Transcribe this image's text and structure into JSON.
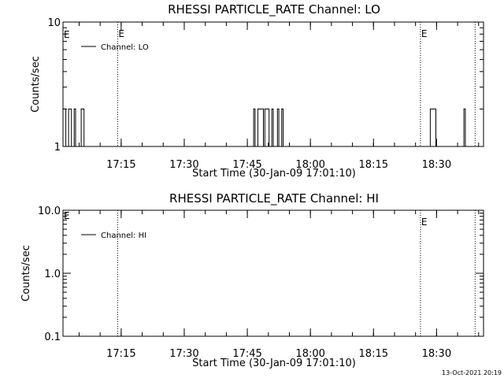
{
  "footer_timestamp": "13-Oct-2021 20:19",
  "chart_data": [
    {
      "type": "line",
      "title": "RHESSI PARTICLE_RATE Channel: LO",
      "xlabel": "Start Time (30-Jan-09 17:01:10)",
      "ylabel": "Counts/sec",
      "yscale": "log",
      "ylim": [
        1,
        10
      ],
      "yticks": [
        1,
        10
      ],
      "ytick_labels": [
        "1",
        "10"
      ],
      "xlim": [
        "17:01:10",
        "18:41:10"
      ],
      "xticks": [
        "17:15",
        "17:30",
        "17:45",
        "18:00",
        "18:15",
        "18:30"
      ],
      "legend": {
        "label": "Channel: LO",
        "position": "top-left"
      },
      "event_lines": [
        {
          "time": "17:14:10",
          "label": "E"
        },
        {
          "time": "18:26:10",
          "label": "E"
        },
        {
          "time": "18:39:10",
          "label": ""
        }
      ],
      "edge_label": "E",
      "series": [
        {
          "name": "Channel: LO",
          "x": [
            "17:01:10",
            "17:01:30",
            "17:01:50",
            "17:02:10",
            "17:02:30",
            "17:03:10",
            "17:03:30",
            "17:03:50",
            "17:04:10",
            "17:05:10",
            "17:05:30",
            "17:05:50",
            "17:06:10",
            "17:46:10",
            "17:46:30",
            "17:46:50",
            "17:47:10",
            "17:47:30",
            "17:47:50",
            "17:48:10",
            "17:48:50",
            "17:49:10",
            "17:49:30",
            "17:49:50",
            "17:50:10",
            "17:50:30",
            "17:50:50",
            "17:51:10",
            "17:51:30",
            "17:51:50",
            "17:52:10",
            "17:52:30",
            "17:52:50",
            "17:53:10",
            "17:53:30",
            "18:28:10",
            "18:28:30",
            "18:28:50",
            "18:29:10",
            "18:29:30",
            "18:29:50",
            "18:36:10",
            "18:36:30",
            "18:36:50",
            "18:37:10"
          ],
          "y": [
            2,
            2,
            1,
            1,
            2,
            1,
            1,
            2,
            1,
            1,
            2,
            2,
            1,
            1,
            2,
            1,
            1,
            2,
            2,
            2,
            1,
            2,
            2,
            2,
            1,
            1,
            2,
            1,
            1,
            1,
            2,
            1,
            1,
            2,
            1,
            1,
            2,
            2,
            2,
            2,
            1,
            1,
            2,
            1,
            1
          ]
        }
      ]
    },
    {
      "type": "line",
      "title": "RHESSI PARTICLE_RATE Channel: HI",
      "xlabel": "Start Time (30-Jan-09 17:01:10)",
      "ylabel": "Counts/sec",
      "yscale": "log",
      "ylim": [
        0.1,
        10
      ],
      "yticks": [
        0.1,
        1,
        10
      ],
      "ytick_labels": [
        "0.1",
        "1.0",
        "10.0"
      ],
      "xlim": [
        "17:01:10",
        "18:41:10"
      ],
      "xticks": [
        "17:15",
        "17:30",
        "17:45",
        "18:00",
        "18:15",
        "18:30"
      ],
      "legend": {
        "label": "Channel: HI",
        "position": "top-left"
      },
      "event_lines": [
        {
          "time": "17:14:10",
          "label": ""
        },
        {
          "time": "18:26:10",
          "label": "E"
        },
        {
          "time": "18:39:10",
          "label": ""
        }
      ],
      "edge_label": "E",
      "series": [
        {
          "name": "Channel: HI",
          "x": [],
          "y": []
        }
      ]
    }
  ]
}
